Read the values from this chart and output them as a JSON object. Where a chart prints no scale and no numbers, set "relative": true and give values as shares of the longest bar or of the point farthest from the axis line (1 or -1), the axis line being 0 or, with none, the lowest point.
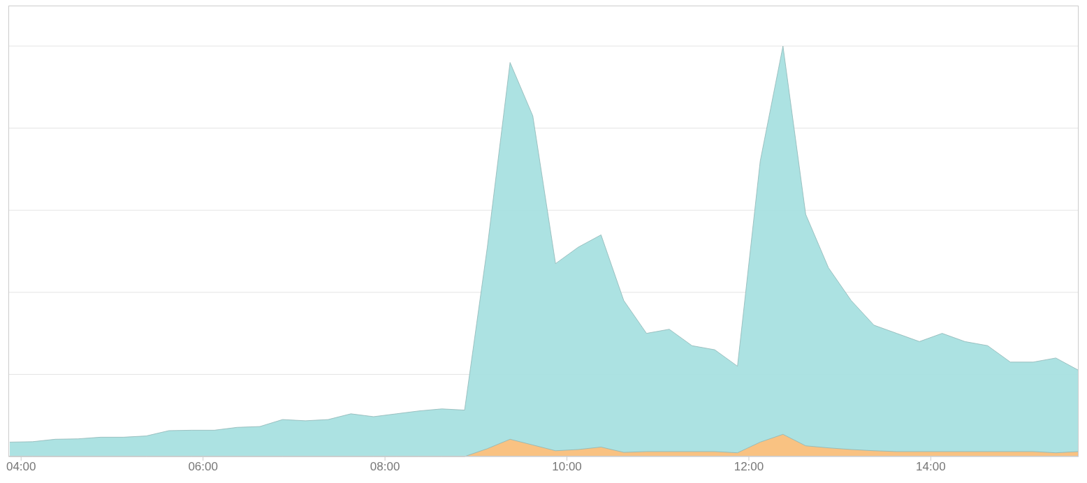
{
  "chart_data": {
    "type": "area",
    "relative": true,
    "grid": "y",
    "legend": false,
    "x": [
      3.875,
      4.125,
      4.375,
      4.625,
      4.875,
      5.125,
      5.375,
      5.625,
      5.875,
      6.125,
      6.375,
      6.625,
      6.875,
      7.125,
      7.375,
      7.625,
      7.875,
      8.125,
      8.375,
      8.625,
      8.875,
      9.125,
      9.375,
      9.625,
      9.875,
      10.125,
      10.375,
      10.625,
      10.875,
      11.125,
      11.375,
      11.625,
      11.875,
      12.125,
      12.375,
      12.625,
      12.875,
      13.125,
      13.375,
      13.625,
      13.875,
      14.125,
      14.375,
      14.625,
      14.875,
      15.125,
      15.375,
      15.625
    ],
    "xlim": [
      3.86,
      15.625
    ],
    "xticks": [
      {
        "value": 4,
        "label": "04:00"
      },
      {
        "value": 6,
        "label": "06:00"
      },
      {
        "value": 8,
        "label": "08:00"
      },
      {
        "value": 10,
        "label": "10:00"
      },
      {
        "value": 12,
        "label": "12:00"
      },
      {
        "value": 14,
        "label": "14:00"
      }
    ],
    "series": [
      {
        "color": "#a8e0e0",
        "values": [
          0.035,
          0.036,
          0.042,
          0.043,
          0.047,
          0.047,
          0.05,
          0.063,
          0.064,
          0.064,
          0.071,
          0.073,
          0.09,
          0.087,
          0.09,
          0.104,
          0.097,
          0.104,
          0.111,
          0.116,
          0.113,
          0.51,
          0.96,
          0.83,
          0.47,
          0.51,
          0.54,
          0.38,
          0.3,
          0.31,
          0.27,
          0.26,
          0.22,
          0.72,
          1,
          0.59,
          0.46,
          0.38,
          0.32,
          0.3,
          0.28,
          0.3,
          0.28,
          0.27,
          0.23,
          0.23,
          0.24,
          0.21
        ]
      },
      {
        "color": "#fdc07c",
        "values": [
          0,
          0,
          0,
          0,
          0,
          0,
          0,
          0,
          0,
          0,
          0,
          0,
          0,
          0,
          0,
          0,
          0,
          0,
          0,
          0,
          0,
          0.019,
          0.042,
          0.028,
          0.014,
          0.017,
          0.023,
          0.01,
          0.012,
          0.012,
          0.012,
          0.012,
          0.009,
          0.035,
          0.054,
          0.026,
          0.021,
          0.017,
          0.014,
          0.012,
          0.012,
          0.012,
          0.012,
          0.012,
          0.012,
          0.012,
          0.009,
          0.012
        ]
      }
    ]
  }
}
